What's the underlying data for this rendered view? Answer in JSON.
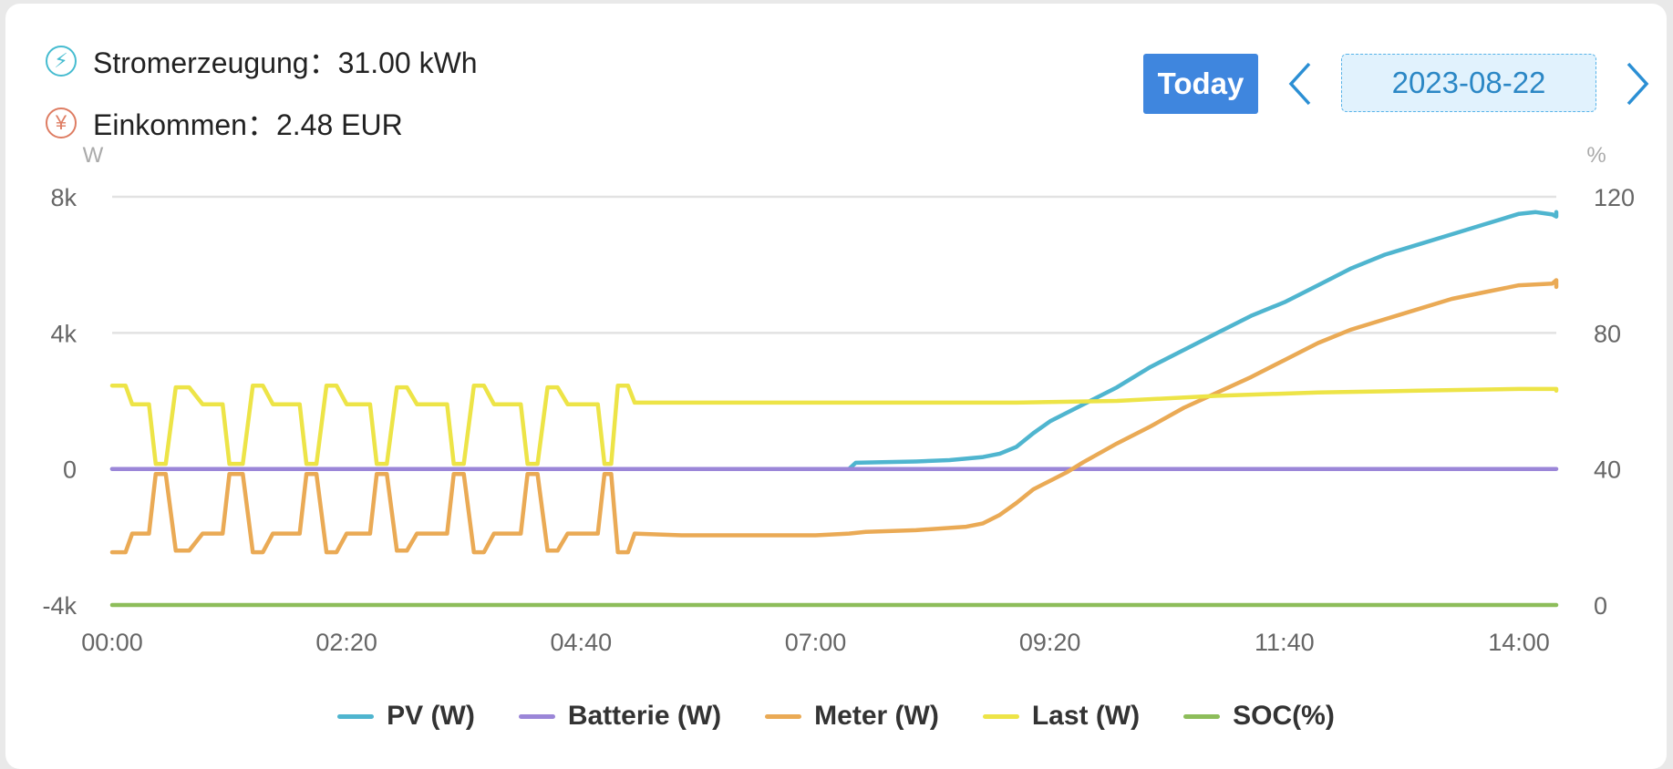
{
  "header": {
    "generation_label": "Stromerzeugung",
    "generation_value": "31.00 kWh",
    "income_label": "Einkommen",
    "income_value": "2.48 EUR",
    "bolt_icon": "lightning-bolt-icon",
    "yen_icon": "yen-icon"
  },
  "toolbar": {
    "today_label": "Today",
    "date_value": "2023-08-22",
    "prev_icon": "chevron-left-icon",
    "next_icon": "chevron-right-icon"
  },
  "colors": {
    "pv": "#4fb5cf",
    "battery": "#9b86d8",
    "meter": "#eaaa55",
    "load": "#ede447",
    "soc": "#8dbd5a",
    "accent": "#3f86de",
    "grid": "#e2e2e2"
  },
  "chart_data": {
    "type": "line",
    "left_unit": "W",
    "right_unit": "%",
    "y_left_ticks": [
      "8k",
      "4k",
      "0",
      "-4k"
    ],
    "y_right_ticks": [
      "120",
      "80",
      "40",
      "0"
    ],
    "y_left_range": [
      -4000,
      8000
    ],
    "y_right_range": [
      0,
      120
    ],
    "x_ticks": [
      "00:00",
      "02:20",
      "04:40",
      "07:00",
      "09:20",
      "11:40",
      "14:00"
    ],
    "x_range_minutes": [
      0,
      860
    ],
    "grid": true,
    "legend_position": "bottom",
    "series": [
      {
        "name": "PV (W)",
        "color": "#4fb5cf",
        "axis": "left",
        "points": [
          [
            0,
            0
          ],
          [
            440,
            0
          ],
          [
            444,
            180
          ],
          [
            460,
            200
          ],
          [
            480,
            220
          ],
          [
            500,
            260
          ],
          [
            520,
            350
          ],
          [
            530,
            450
          ],
          [
            540,
            650
          ],
          [
            550,
            1050
          ],
          [
            560,
            1400
          ],
          [
            580,
            1900
          ],
          [
            600,
            2400
          ],
          [
            620,
            3000
          ],
          [
            640,
            3500
          ],
          [
            660,
            4000
          ],
          [
            680,
            4500
          ],
          [
            700,
            4900
          ],
          [
            720,
            5400
          ],
          [
            740,
            5900
          ],
          [
            760,
            6300
          ],
          [
            780,
            6600
          ],
          [
            800,
            6900
          ],
          [
            820,
            7200
          ],
          [
            840,
            7500
          ],
          [
            850,
            7550
          ],
          [
            860,
            7480
          ],
          [
            870,
            7420
          ],
          [
            880,
            7470
          ],
          [
            890,
            7520
          ],
          [
            900,
            7550
          ],
          [
            910,
            7470
          ],
          [
            920,
            7490
          ],
          [
            940,
            7480
          ],
          [
            958,
            7450
          ]
        ]
      },
      {
        "name": "Batterie (W)",
        "color": "#9b86d8",
        "axis": "left",
        "points": [
          [
            0,
            0
          ],
          [
            958,
            0
          ]
        ]
      },
      {
        "name": "Meter (W)",
        "color": "#eaaa55",
        "axis": "left",
        "points": [
          [
            0,
            -2450
          ],
          [
            8,
            -2450
          ],
          [
            12,
            -1900
          ],
          [
            22,
            -1900
          ],
          [
            26,
            -150
          ],
          [
            32,
            -150
          ],
          [
            38,
            -2400
          ],
          [
            46,
            -2400
          ],
          [
            54,
            -1900
          ],
          [
            66,
            -1900
          ],
          [
            70,
            -150
          ],
          [
            78,
            -150
          ],
          [
            84,
            -2450
          ],
          [
            90,
            -2450
          ],
          [
            96,
            -1900
          ],
          [
            112,
            -1900
          ],
          [
            116,
            -150
          ],
          [
            122,
            -150
          ],
          [
            128,
            -2450
          ],
          [
            134,
            -2450
          ],
          [
            140,
            -1900
          ],
          [
            154,
            -1900
          ],
          [
            158,
            -150
          ],
          [
            164,
            -150
          ],
          [
            170,
            -2400
          ],
          [
            176,
            -2400
          ],
          [
            182,
            -1900
          ],
          [
            200,
            -1900
          ],
          [
            204,
            -150
          ],
          [
            210,
            -150
          ],
          [
            216,
            -2450
          ],
          [
            222,
            -2450
          ],
          [
            228,
            -1900
          ],
          [
            244,
            -1900
          ],
          [
            248,
            -150
          ],
          [
            254,
            -150
          ],
          [
            260,
            -2400
          ],
          [
            266,
            -2400
          ],
          [
            272,
            -1900
          ],
          [
            290,
            -1900
          ],
          [
            294,
            -150
          ],
          [
            298,
            -150
          ],
          [
            302,
            -2450
          ],
          [
            308,
            -2450
          ],
          [
            312,
            -1900
          ],
          [
            340,
            -1950
          ],
          [
            380,
            -1950
          ],
          [
            420,
            -1950
          ],
          [
            440,
            -1900
          ],
          [
            450,
            -1850
          ],
          [
            480,
            -1800
          ],
          [
            510,
            -1700
          ],
          [
            520,
            -1600
          ],
          [
            530,
            -1350
          ],
          [
            540,
            -1000
          ],
          [
            550,
            -600
          ],
          [
            560,
            -350
          ],
          [
            570,
            -100
          ],
          [
            580,
            200
          ],
          [
            600,
            750
          ],
          [
            620,
            1250
          ],
          [
            640,
            1800
          ],
          [
            660,
            2250
          ],
          [
            680,
            2700
          ],
          [
            700,
            3200
          ],
          [
            720,
            3700
          ],
          [
            740,
            4100
          ],
          [
            760,
            4400
          ],
          [
            780,
            4700
          ],
          [
            800,
            5000
          ],
          [
            820,
            5200
          ],
          [
            840,
            5400
          ],
          [
            860,
            5450
          ],
          [
            870,
            5550
          ],
          [
            880,
            5500
          ],
          [
            890,
            5450
          ],
          [
            900,
            5400
          ],
          [
            920,
            5350
          ],
          [
            940,
            5350
          ],
          [
            958,
            5350
          ]
        ]
      },
      {
        "name": "Last (W)",
        "color": "#ede447",
        "axis": "left",
        "points": [
          [
            0,
            2450
          ],
          [
            8,
            2450
          ],
          [
            12,
            1900
          ],
          [
            22,
            1900
          ],
          [
            26,
            150
          ],
          [
            32,
            150
          ],
          [
            38,
            2400
          ],
          [
            46,
            2400
          ],
          [
            54,
            1900
          ],
          [
            66,
            1900
          ],
          [
            70,
            150
          ],
          [
            78,
            150
          ],
          [
            84,
            2450
          ],
          [
            90,
            2450
          ],
          [
            96,
            1900
          ],
          [
            112,
            1900
          ],
          [
            116,
            150
          ],
          [
            122,
            150
          ],
          [
            128,
            2450
          ],
          [
            134,
            2450
          ],
          [
            140,
            1900
          ],
          [
            154,
            1900
          ],
          [
            158,
            150
          ],
          [
            164,
            150
          ],
          [
            170,
            2400
          ],
          [
            176,
            2400
          ],
          [
            182,
            1900
          ],
          [
            200,
            1900
          ],
          [
            204,
            150
          ],
          [
            210,
            150
          ],
          [
            216,
            2450
          ],
          [
            222,
            2450
          ],
          [
            228,
            1900
          ],
          [
            244,
            1900
          ],
          [
            248,
            150
          ],
          [
            254,
            150
          ],
          [
            260,
            2400
          ],
          [
            266,
            2400
          ],
          [
            272,
            1900
          ],
          [
            290,
            1900
          ],
          [
            294,
            150
          ],
          [
            298,
            150
          ],
          [
            302,
            2450
          ],
          [
            308,
            2450
          ],
          [
            312,
            1950
          ],
          [
            360,
            1950
          ],
          [
            420,
            1950
          ],
          [
            480,
            1950
          ],
          [
            540,
            1950
          ],
          [
            600,
            2000
          ],
          [
            660,
            2150
          ],
          [
            720,
            2250
          ],
          [
            780,
            2300
          ],
          [
            840,
            2350
          ],
          [
            900,
            2350
          ],
          [
            958,
            2300
          ]
        ]
      },
      {
        "name": "SOC(%)",
        "color": "#8dbd5a",
        "axis": "right",
        "points": [
          [
            0,
            0
          ],
          [
            958,
            0
          ]
        ]
      }
    ]
  }
}
